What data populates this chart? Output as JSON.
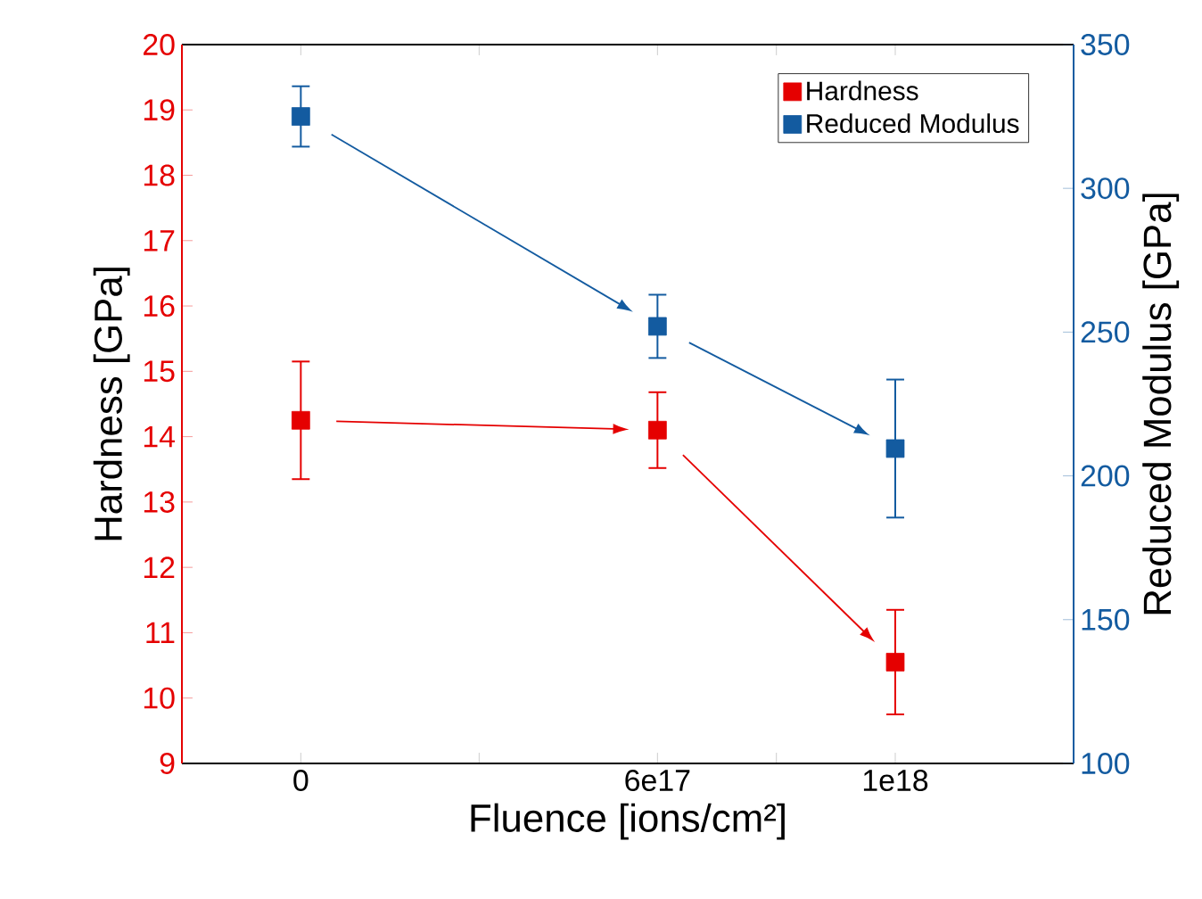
{
  "chart_data": {
    "type": "scatter",
    "xlabel": "Fluence [ions/cm²]",
    "ylabel": "Hardness [GPa]",
    "y2label": "Reduced Modulus [GPa]",
    "x": [
      0,
      6e+17,
      1e+18
    ],
    "xlim": [
      -2e+17,
      1.3e+18
    ],
    "xticks": [
      {
        "value": 0,
        "label": "0"
      },
      {
        "value": 3e+17,
        "label": null
      },
      {
        "value": 6e+17,
        "label": "6e17"
      },
      {
        "value": 8e+17,
        "label": null
      },
      {
        "value": 1e+18,
        "label": "1e18"
      }
    ],
    "ylim": [
      9,
      20
    ],
    "yticks": [
      9,
      10,
      11,
      12,
      13,
      14,
      15,
      16,
      17,
      18,
      19,
      20
    ],
    "y2lim": [
      100,
      350
    ],
    "y2ticks": [
      100,
      150,
      200,
      250,
      300,
      350
    ],
    "marker": "square",
    "legend": "top right",
    "grid": false,
    "series": [
      {
        "name": "Hardness",
        "color": "#e50000",
        "axis": "y",
        "values": [
          14.25,
          14.1,
          10.55
        ],
        "errors": [
          0.9,
          0.58,
          0.8
        ]
      },
      {
        "name": "Reduced Modulus",
        "color": "#135ba0",
        "axis": "y2",
        "values": [
          325,
          252,
          209.5
        ],
        "errors": [
          10.5,
          11,
          24
        ]
      }
    ]
  }
}
